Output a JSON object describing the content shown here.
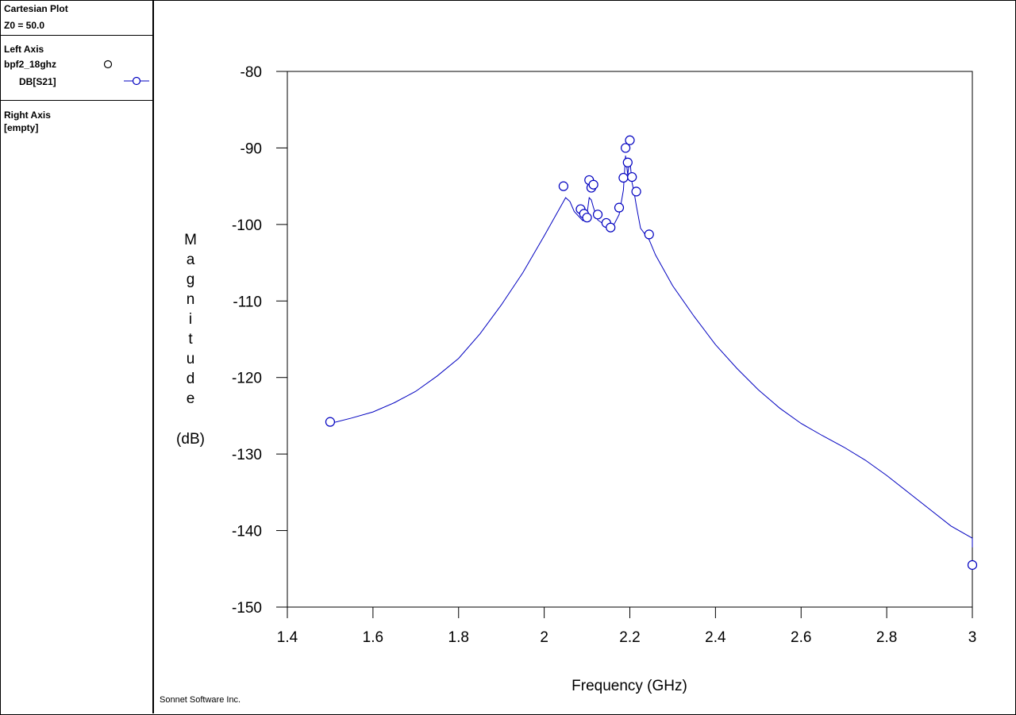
{
  "sidebar": {
    "title": "Cartesian Plot",
    "z0": "Z0 = 50.0",
    "left_axis": {
      "heading": "Left Axis",
      "project": "bpf2_18ghz",
      "trace": "DB[S21]"
    },
    "right_axis": {
      "heading": "Right Axis",
      "value": "[empty]"
    }
  },
  "footer": "Sonnet Software Inc.",
  "colors": {
    "trace": "#0000c0",
    "frame": "#000000"
  },
  "chart_data": {
    "type": "line",
    "xlabel": "Frequency (GHz)",
    "ylabel_letters": [
      "M",
      "a",
      "g",
      "n",
      "i",
      "t",
      "u",
      "d",
      "e"
    ],
    "ylabel_unit": "(dB)",
    "xlim": [
      1.4,
      3.0
    ],
    "ylim": [
      -150,
      -80
    ],
    "xticks": [
      "1.4",
      "1.6",
      "1.8",
      "2",
      "2.2",
      "2.4",
      "2.6",
      "2.8",
      "3"
    ],
    "yticks": [
      "-80",
      "-90",
      "-100",
      "-110",
      "-120",
      "-130",
      "-140",
      "-150"
    ],
    "grid": false,
    "series": [
      {
        "name": "DB[S21]",
        "x": [
          1.5,
          1.55,
          1.6,
          1.65,
          1.7,
          1.75,
          1.8,
          1.85,
          1.9,
          1.95,
          2.0,
          2.02,
          2.04,
          2.05,
          2.06,
          2.07,
          2.085,
          2.09,
          2.1,
          2.105,
          2.11,
          2.115,
          2.125,
          2.145,
          2.155,
          2.165,
          2.175,
          2.185,
          2.19,
          2.195,
          2.2,
          2.205,
          2.21,
          2.215,
          2.225,
          2.245,
          2.26,
          2.3,
          2.35,
          2.4,
          2.45,
          2.5,
          2.55,
          2.6,
          2.65,
          2.7,
          2.75,
          2.8,
          2.85,
          2.9,
          2.95,
          3.0,
          3.0
        ],
        "y": [
          -126,
          -125.3,
          -124.5,
          -123.3,
          -121.8,
          -119.8,
          -117.5,
          -114.3,
          -110.5,
          -106.3,
          -101.5,
          -99.5,
          -97.5,
          -96.5,
          -97,
          -98.3,
          -99.2,
          -99.5,
          -98.6,
          -96.5,
          -96.8,
          -97.8,
          -99.4,
          -100.2,
          -100.6,
          -99.8,
          -98.7,
          -95.5,
          -91,
          -93.5,
          -91.5,
          -94.5,
          -95.8,
          -97.5,
          -100.5,
          -102,
          -104,
          -108,
          -112,
          -115.7,
          -118.8,
          -121.6,
          -124,
          -126,
          -127.6,
          -129.1,
          -130.8,
          -132.8,
          -135,
          -137.2,
          -139.4,
          -141,
          -142.2
        ],
        "markers": {
          "x": [
            1.5,
            2.045,
            2.085,
            2.093,
            2.1,
            2.105,
            2.11,
            2.115,
            2.125,
            2.145,
            2.155,
            2.175,
            2.185,
            2.19,
            2.195,
            2.2,
            2.205,
            2.215,
            2.245,
            3.0
          ],
          "y": [
            -125.8,
            -95,
            -98,
            -98.6,
            -99.1,
            -94.2,
            -95.2,
            -94.8,
            -98.7,
            -99.8,
            -100.4,
            -97.8,
            -93.9,
            -90,
            -91.9,
            -89,
            -93.8,
            -95.7,
            -101.3,
            -144.5
          ]
        }
      }
    ]
  }
}
